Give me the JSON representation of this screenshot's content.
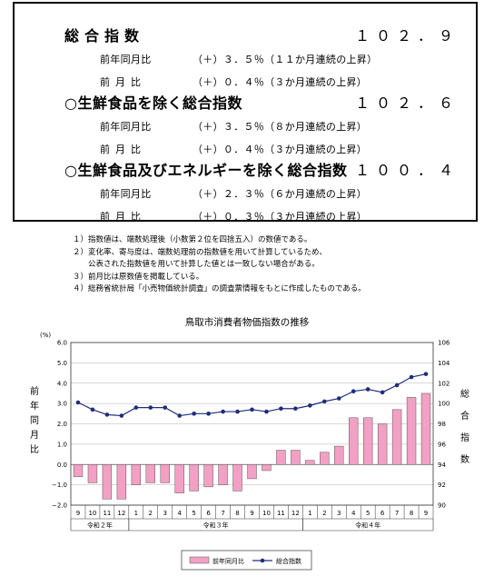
{
  "summary": {
    "rows": [
      {
        "title": "総合指数",
        "value": "１０２．９",
        "subs": [
          {
            "label": "前年同月比",
            "text": "（＋）３．５％（１１か月連続の上昇）"
          },
          {
            "label": "前月比",
            "text": "（＋）０．４％（３か月連続の上昇）"
          }
        ]
      },
      {
        "title": "○生鮮食品を除く総合指数",
        "value": "１０２．６",
        "subs": [
          {
            "label": "前年同月比",
            "text": "（＋）３．５％（８か月連続の上昇）"
          },
          {
            "label": "前月比",
            "text": "（＋）０．４％（３か月連続の上昇）"
          }
        ]
      },
      {
        "title": "○生鮮食品及びエネルギーを除く総合指数",
        "value": "１００．４",
        "subs": [
          {
            "label": "前年同月比",
            "text": "（＋）２．３％（６か月連続の上昇）"
          },
          {
            "label": "前月比",
            "text": "（＋）０．３％（３か月連続の上昇）"
          }
        ]
      }
    ]
  },
  "notes": [
    "１）指数値は、端数処理後（小数第２位を四捨五入）の数値である。",
    "２）変化率、寄与度は、端数処理前の指数値を用いて計算しているため、",
    "　　公表された指数値を用いて計算した値とは一致しない場合がある。",
    "３）前月比は原数値を掲載している。",
    "４）総務省統計局「小売物価統計調査」の調査票情報をもとに作成したものである。"
  ],
  "chart_data": {
    "type": "bar",
    "title": "鳥取市消費者物価指数の推移",
    "y_left_unit": "(%)",
    "y_left_label": "前年同月比",
    "y_right_label": "総合指数",
    "ylim_left": [
      -2.0,
      6.0
    ],
    "ylim_right": [
      90,
      106
    ],
    "yticks_left": [
      "6.0",
      "5.0",
      "4.0",
      "3.0",
      "2.0",
      "1.0",
      "0.0",
      "−1.0",
      "−2.0"
    ],
    "yticks_right": [
      "106",
      "104",
      "102",
      "100",
      "98",
      "96",
      "94",
      "92",
      "90"
    ],
    "categories": [
      "9",
      "10",
      "11",
      "12",
      "1",
      "2",
      "3",
      "4",
      "5",
      "6",
      "7",
      "8",
      "9",
      "10",
      "11",
      "12",
      "1",
      "2",
      "3",
      "4",
      "5",
      "6",
      "7",
      "8",
      "9"
    ],
    "year_groups": [
      {
        "label": "令和２年",
        "start": 0,
        "count": 4
      },
      {
        "label": "令和３年",
        "start": 4,
        "count": 12
      },
      {
        "label": "令和４年",
        "start": 16,
        "count": 9
      }
    ],
    "series": [
      {
        "name": "前年同月比",
        "type": "bar",
        "axis": "left",
        "color": "#f2a0c4",
        "values": [
          -0.6,
          -0.9,
          -1.7,
          -1.7,
          -1.0,
          -0.9,
          -0.9,
          -1.4,
          -1.3,
          -1.1,
          -1.0,
          -1.3,
          -0.7,
          -0.3,
          0.7,
          0.7,
          0.2,
          0.6,
          0.9,
          2.3,
          2.3,
          2.0,
          2.7,
          3.3,
          3.5
        ]
      },
      {
        "name": "総合指数",
        "type": "line",
        "axis": "right",
        "color": "#1f2d7a",
        "values": [
          100.1,
          99.4,
          98.9,
          98.8,
          99.6,
          99.6,
          99.6,
          98.8,
          99.0,
          99.0,
          99.2,
          99.2,
          99.4,
          99.2,
          99.5,
          99.5,
          99.8,
          100.2,
          100.5,
          101.2,
          101.4,
          101.1,
          101.8,
          102.6,
          102.9
        ]
      }
    ],
    "legend_position": "bottom",
    "grid": true
  }
}
